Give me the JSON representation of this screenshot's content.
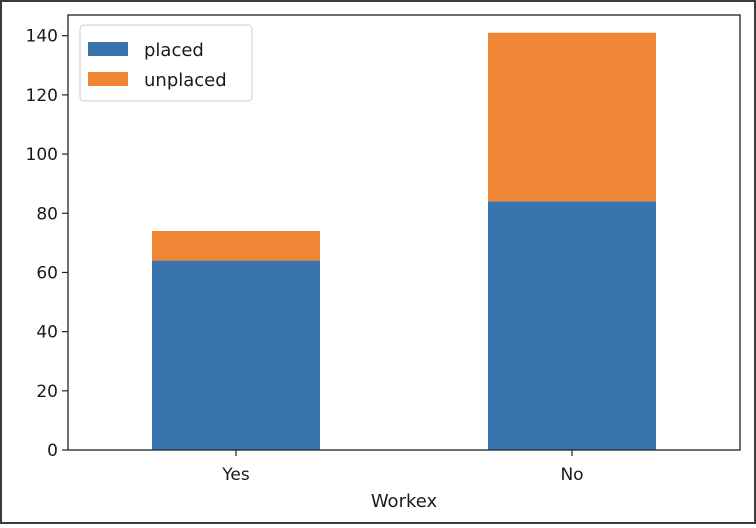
{
  "chart_data": {
    "type": "bar",
    "stacked": true,
    "categories": [
      "Yes",
      "No"
    ],
    "series": [
      {
        "name": "placed",
        "values": [
          64,
          84
        ],
        "color": "#3a74ad"
      },
      {
        "name": "unplaced",
        "values": [
          10,
          57
        ],
        "color": "#ef8636"
      }
    ],
    "xlabel": "Workex",
    "ylabel": "",
    "ylim": [
      0,
      147
    ],
    "yticks": [
      0,
      20,
      40,
      60,
      80,
      100,
      120,
      140
    ],
    "legend_position": "top-left",
    "grid": false
  }
}
